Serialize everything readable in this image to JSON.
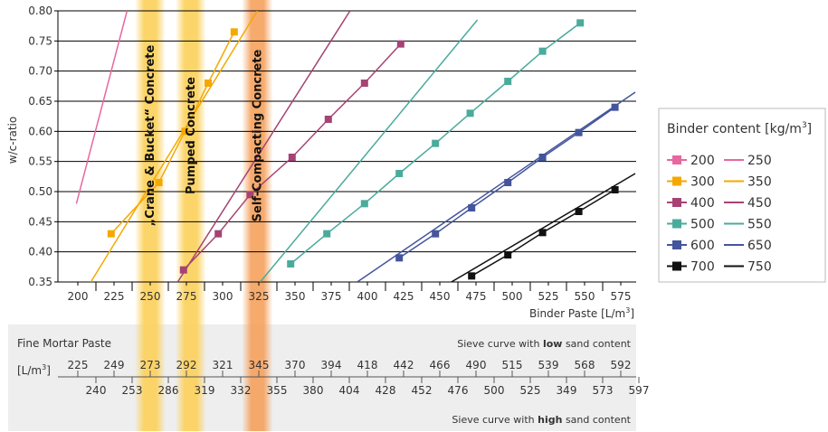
{
  "chart_data": {
    "type": "line",
    "xlabel": "Binder Paste",
    "xlabel_unit_prefix": "[L/m",
    "xlabel_unit_exp": "3",
    "xlabel_unit_suffix": "]",
    "ylabel": "w/c-ratio",
    "xlim": [
      195,
      585
    ],
    "ylim": [
      0.35,
      0.8
    ],
    "x_ticks": [
      "200",
      "225",
      "250",
      "275",
      "300",
      "325",
      "350",
      "375",
      "400",
      "425",
      "450",
      "475",
      "500",
      "525",
      "550",
      "575"
    ],
    "y_ticks": [
      "0.80",
      "0.75",
      "0.70",
      "0.65",
      "0.60",
      "0.55",
      "0.50",
      "0.45",
      "0.40",
      "0.35"
    ],
    "grid": "horizontal",
    "legend_position": "right",
    "legend_title_prefix": "Binder content [kg/m",
    "legend_title_exp": "3",
    "legend_title_suffix": "]",
    "series": [
      {
        "name": "200",
        "color": "#e8679e",
        "marker": true,
        "x": [],
        "y": []
      },
      {
        "name": "250",
        "color": "#e8679e",
        "marker": false,
        "x": [
          199,
          234
        ],
        "y": [
          0.48,
          0.8
        ]
      },
      {
        "name": "300",
        "color": "#f5a800",
        "marker": true,
        "x": [
          223,
          256,
          274,
          290,
          308
        ],
        "y": [
          0.43,
          0.515,
          0.6,
          0.68,
          0.765
        ]
      },
      {
        "name": "350",
        "color": "#f5a800",
        "marker": false,
        "x": [
          209,
          324
        ],
        "y": [
          0.35,
          0.8
        ]
      },
      {
        "name": "400",
        "color": "#a64373",
        "marker": true,
        "x": [
          273,
          297,
          319,
          348,
          373,
          398,
          423
        ],
        "y": [
          0.37,
          0.43,
          0.495,
          0.557,
          0.62,
          0.68,
          0.745
        ]
      },
      {
        "name": "450",
        "color": "#a64373",
        "marker": false,
        "x": [
          269,
          388
        ],
        "y": [
          0.35,
          0.8
        ]
      },
      {
        "name": "500",
        "color": "#4aab9c",
        "marker": true,
        "x": [
          347,
          372,
          398,
          422,
          447,
          471,
          497,
          521,
          547
        ],
        "y": [
          0.38,
          0.43,
          0.48,
          0.53,
          0.58,
          0.63,
          0.683,
          0.733,
          0.78
        ]
      },
      {
        "name": "550",
        "color": "#4aab9c",
        "marker": false,
        "x": [
          326,
          476
        ],
        "y": [
          0.35,
          0.785
        ]
      },
      {
        "name": "600",
        "color": "#44559c",
        "marker": true,
        "x": [
          422,
          447,
          472,
          497,
          521,
          546,
          571
        ],
        "y": [
          0.39,
          0.43,
          0.473,
          0.515,
          0.557,
          0.598,
          0.64
        ]
      },
      {
        "name": "650",
        "color": "#44559c",
        "marker": false,
        "x": [
          393,
          585
        ],
        "y": [
          0.35,
          0.665
        ]
      },
      {
        "name": "700",
        "color": "#111111",
        "marker": true,
        "x": [
          472,
          497,
          521,
          546,
          571
        ],
        "y": [
          0.36,
          0.395,
          0.432,
          0.467,
          0.503
        ]
      },
      {
        "name": "750",
        "color": "#111111",
        "marker": false,
        "x": [
          458,
          585
        ],
        "y": [
          0.35,
          0.53
        ]
      }
    ],
    "bands": [
      {
        "label": "„Crane & Bucket“ Concrete",
        "x_center": 250,
        "color": "#fcd05a"
      },
      {
        "label": "Pumped Concrete",
        "x_center": 278,
        "color": "#fcd05a"
      },
      {
        "label": "Self-Compacting Concrete",
        "x_center": 324,
        "color": "#f5a05c"
      }
    ]
  },
  "mortar_table": {
    "title": "Fine Mortar Paste",
    "unit_prefix": "[L/m",
    "unit_exp": "3",
    "unit_suffix": "]",
    "low_caption_pre": "Sieve curve with ",
    "low_caption_bold": "low",
    "low_caption_post": " sand content",
    "high_caption_pre": "Sieve curve with ",
    "high_caption_bold": "high",
    "high_caption_post": " sand content",
    "low_values": [
      "225",
      "249",
      "273",
      "292",
      "321",
      "345",
      "370",
      "394",
      "418",
      "442",
      "466",
      "490",
      "515",
      "539",
      "568",
      "592"
    ],
    "high_values": [
      "240",
      "253",
      "286",
      "319",
      "332",
      "355",
      "380",
      "404",
      "428",
      "452",
      "476",
      "500",
      "525",
      "349",
      "573",
      "597"
    ]
  },
  "colors": {
    "grid": "#000000",
    "panel": "#eeeeee",
    "band_yellow": "#fcd05a",
    "band_orange": "#f5a05c"
  }
}
